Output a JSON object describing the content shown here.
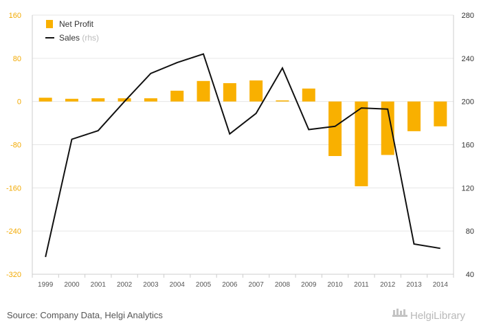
{
  "chart_data": {
    "type": "bar",
    "categories": [
      "1999",
      "2000",
      "2001",
      "2002",
      "2003",
      "2004",
      "2005",
      "2006",
      "2007",
      "2008",
      "2009",
      "2010",
      "2011",
      "2012",
      "2013",
      "2014"
    ],
    "series": [
      {
        "name": "Net Profit",
        "kind": "bar",
        "axis": "left",
        "color": "#f9b000",
        "values": [
          7,
          5,
          6,
          6,
          6,
          20,
          38,
          34,
          39,
          2,
          24,
          -101,
          -157,
          -99,
          -55,
          -46
        ]
      },
      {
        "name": "Sales",
        "name_suffix": "(rhs)",
        "kind": "line",
        "axis": "right",
        "color": "#111111",
        "values": [
          56,
          165,
          173,
          200,
          226,
          236,
          244,
          170,
          189,
          231,
          174,
          177,
          194,
          193,
          68,
          64
        ]
      }
    ],
    "y_left": {
      "min": -320,
      "max": 160,
      "ticks": [
        160,
        80,
        0,
        -80,
        -160,
        -240,
        -320
      ],
      "tick_color": "#f2a900"
    },
    "y_right": {
      "min": 40,
      "max": 280,
      "ticks": [
        280,
        240,
        200,
        160,
        120,
        80,
        40
      ]
    },
    "grid": true,
    "legend_position": "top-left"
  },
  "footer": {
    "source": "Source: Company Data, Helgi Analytics",
    "brand": "HelgiLibrary"
  }
}
